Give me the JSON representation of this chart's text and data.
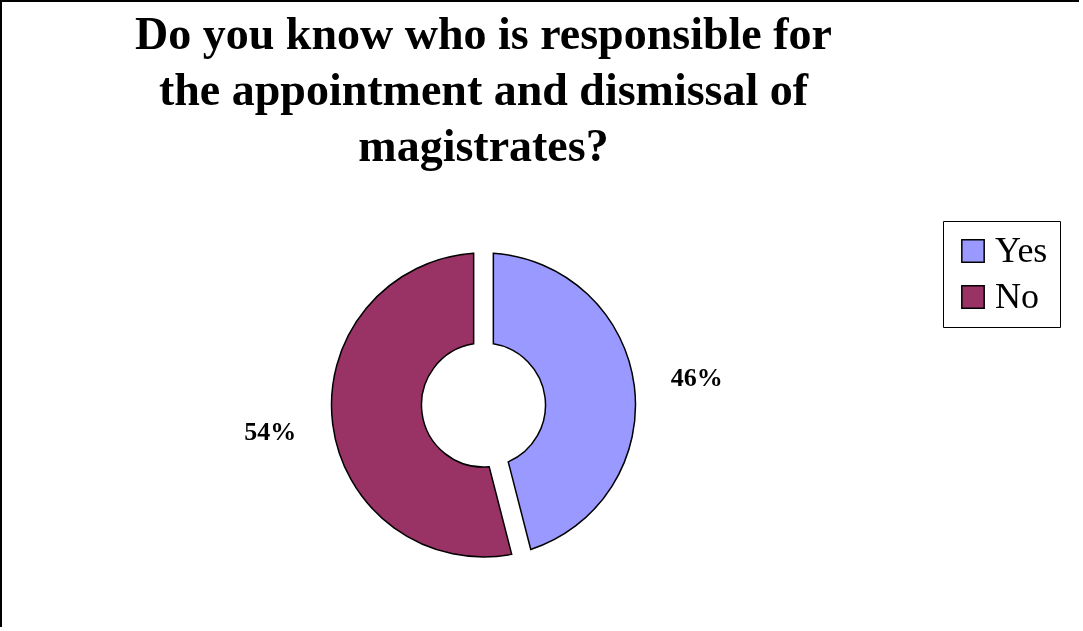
{
  "chart_data": {
    "type": "donut",
    "title": "Do you know who is responsible for the appointment and dismissal of magistrates?",
    "categories": [
      "Yes",
      "No"
    ],
    "values": [
      46,
      54
    ],
    "colors": [
      "#9999ff",
      "#993366"
    ],
    "value_labels": [
      "46%",
      "54%"
    ],
    "legend": "right"
  }
}
